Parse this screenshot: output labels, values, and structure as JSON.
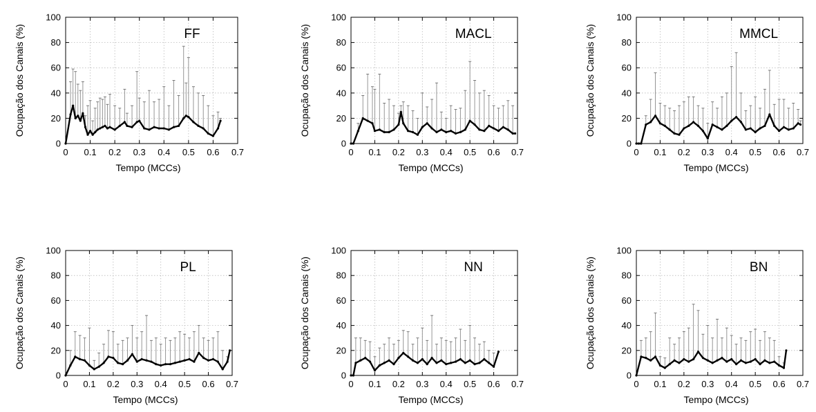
{
  "chart_data": [
    {
      "type": "line",
      "title": "FF",
      "xlabel": "Tempo (MCCs)",
      "ylabel": "Ocupação dos Canais (%)",
      "xlim": [
        0,
        0.7
      ],
      "ylim": [
        0,
        100
      ],
      "xticks": [
        "0",
        "0.1",
        "0.2",
        "0.3",
        "0.4",
        "0.5",
        "0.6",
        "0.7"
      ],
      "yticks": [
        "0",
        "20",
        "40",
        "60",
        "80",
        "100"
      ],
      "grid": true,
      "series": [
        {
          "x": [
            0.0,
            0.02,
            0.03,
            0.04,
            0.05,
            0.06,
            0.07,
            0.08,
            0.09,
            0.1,
            0.11,
            0.12,
            0.13,
            0.14,
            0.15,
            0.16,
            0.17,
            0.18,
            0.2,
            0.22,
            0.24,
            0.25,
            0.27,
            0.29,
            0.3,
            0.32,
            0.34,
            0.36,
            0.38,
            0.4,
            0.42,
            0.44,
            0.46,
            0.48,
            0.49,
            0.5,
            0.52,
            0.54,
            0.56,
            0.58,
            0.6,
            0.62,
            0.63
          ],
          "y": [
            0,
            23,
            30,
            20,
            22,
            18,
            24,
            13,
            7,
            10,
            7,
            9,
            11,
            12,
            13,
            14,
            12,
            13,
            11,
            14,
            17,
            14,
            13,
            17,
            18,
            12,
            11,
            13,
            12,
            12,
            11,
            13,
            14,
            20,
            22,
            21,
            17,
            14,
            12,
            8,
            6,
            12,
            18
          ],
          "yerr_upper": [
            0,
            49,
            59,
            57,
            47,
            42,
            49,
            22,
            30,
            34,
            18,
            28,
            33,
            36,
            35,
            37,
            31,
            39,
            30,
            28,
            43,
            24,
            30,
            57,
            36,
            33,
            42,
            33,
            35,
            45,
            30,
            50,
            38,
            77,
            48,
            68,
            45,
            40,
            38,
            30,
            22,
            25,
            20
          ]
        }
      ]
    },
    {
      "type": "line",
      "title": "MACL",
      "xlabel": "Tempo (MCCs)",
      "ylabel": "Ocupação dos Canais (%)",
      "xlim": [
        0,
        0.7
      ],
      "ylim": [
        0,
        100
      ],
      "xticks": [
        "0",
        "0.1",
        "0.2",
        "0.3",
        "0.4",
        "0.5",
        "0.6",
        "0.7"
      ],
      "yticks": [
        "0",
        "20",
        "40",
        "60",
        "80",
        "100"
      ],
      "grid": true,
      "series": [
        {
          "x": [
            0.0,
            0.01,
            0.03,
            0.05,
            0.07,
            0.09,
            0.1,
            0.12,
            0.14,
            0.16,
            0.18,
            0.2,
            0.21,
            0.22,
            0.24,
            0.26,
            0.28,
            0.3,
            0.32,
            0.34,
            0.36,
            0.38,
            0.4,
            0.42,
            0.44,
            0.46,
            0.48,
            0.5,
            0.52,
            0.54,
            0.56,
            0.58,
            0.6,
            0.62,
            0.64,
            0.66,
            0.68,
            0.69
          ],
          "y": [
            0,
            0,
            10,
            20,
            18,
            16,
            10,
            11,
            9,
            9,
            11,
            15,
            25,
            16,
            10,
            9,
            7,
            13,
            16,
            12,
            9,
            11,
            9,
            10,
            8,
            9,
            11,
            18,
            15,
            11,
            10,
            14,
            12,
            10,
            13,
            11,
            8,
            8
          ],
          "yerr_upper": [
            0,
            0,
            16,
            38,
            55,
            45,
            43,
            55,
            32,
            35,
            30,
            24,
            30,
            33,
            30,
            26,
            20,
            40,
            29,
            35,
            48,
            25,
            20,
            30,
            27,
            28,
            42,
            65,
            50,
            40,
            42,
            38,
            30,
            28,
            30,
            34,
            30,
            8
          ]
        }
      ]
    },
    {
      "type": "line",
      "title": "MMCL",
      "xlabel": "Tempo (MCCs)",
      "ylabel": "Ocupação dos Canais (%)",
      "xlim": [
        0,
        0.7
      ],
      "ylim": [
        0,
        100
      ],
      "xticks": [
        "0",
        "0.1",
        "0.2",
        "0.3",
        "0.4",
        "0.5",
        "0.6",
        "0.7"
      ],
      "yticks": [
        "0",
        "20",
        "40",
        "60",
        "80",
        "100"
      ],
      "grid": true,
      "series": [
        {
          "x": [
            0.0,
            0.01,
            0.02,
            0.04,
            0.06,
            0.08,
            0.1,
            0.12,
            0.14,
            0.16,
            0.18,
            0.2,
            0.22,
            0.24,
            0.26,
            0.28,
            0.3,
            0.32,
            0.34,
            0.36,
            0.38,
            0.4,
            0.42,
            0.44,
            0.46,
            0.48,
            0.5,
            0.52,
            0.54,
            0.56,
            0.58,
            0.6,
            0.62,
            0.64,
            0.66,
            0.68,
            0.69
          ],
          "y": [
            0,
            0,
            0,
            15,
            17,
            22,
            16,
            14,
            11,
            8,
            7,
            12,
            14,
            17,
            14,
            10,
            4,
            15,
            13,
            11,
            14,
            18,
            21,
            17,
            11,
            12,
            9,
            12,
            14,
            23,
            14,
            10,
            13,
            11,
            12,
            16,
            15
          ],
          "yerr_upper": [
            0,
            0,
            0,
            22,
            35,
            56,
            32,
            30,
            28,
            26,
            30,
            33,
            37,
            37,
            30,
            28,
            16,
            33,
            28,
            37,
            40,
            61,
            72,
            40,
            26,
            30,
            37,
            28,
            43,
            58,
            31,
            35,
            35,
            28,
            32,
            27,
            18
          ]
        }
      ]
    },
    {
      "type": "line",
      "title": "PL",
      "xlabel": "Tempo (MCCs)",
      "ylabel": "Ocupação dos Canais (%)",
      "xlim": [
        0,
        0.7
      ],
      "ylim": [
        0,
        100
      ],
      "xticks": [
        "0",
        "0.1",
        "0.2",
        "0.3",
        "0.4",
        "0.5",
        "0.6",
        "0.7"
      ],
      "yticks": [
        "0",
        "20",
        "40",
        "60",
        "80",
        "100"
      ],
      "grid": true,
      "series": [
        {
          "x": [
            0.0,
            0.02,
            0.04,
            0.06,
            0.08,
            0.1,
            0.12,
            0.14,
            0.16,
            0.18,
            0.2,
            0.22,
            0.24,
            0.26,
            0.28,
            0.3,
            0.32,
            0.34,
            0.36,
            0.38,
            0.4,
            0.42,
            0.44,
            0.46,
            0.48,
            0.5,
            0.52,
            0.54,
            0.56,
            0.58,
            0.6,
            0.62,
            0.64,
            0.66,
            0.68,
            0.69
          ],
          "y": [
            0,
            8,
            15,
            13,
            12,
            8,
            5,
            7,
            10,
            15,
            14,
            10,
            9,
            12,
            17,
            11,
            13,
            12,
            11,
            9,
            8,
            9,
            9,
            10,
            11,
            12,
            13,
            11,
            18,
            14,
            12,
            13,
            11,
            5,
            11,
            20
          ],
          "yerr_upper": [
            0,
            20,
            35,
            32,
            30,
            38,
            12,
            18,
            25,
            36,
            35,
            25,
            28,
            30,
            40,
            30,
            35,
            48,
            28,
            30,
            25,
            30,
            28,
            30,
            35,
            33,
            30,
            35,
            40,
            30,
            28,
            30,
            35,
            20,
            15,
            20
          ]
        }
      ]
    },
    {
      "type": "line",
      "title": "NN",
      "xlabel": "Tempo (MCCs)",
      "ylabel": "Ocupação dos Canais (%)",
      "xlim": [
        0,
        0.7
      ],
      "ylim": [
        0,
        100
      ],
      "xticks": [
        "0",
        "0.1",
        "0.2",
        "0.3",
        "0.4",
        "0.5",
        "0.6",
        "0.7"
      ],
      "yticks": [
        "0",
        "20",
        "40",
        "60",
        "80",
        "100"
      ],
      "grid": true,
      "series": [
        {
          "x": [
            0.0,
            0.01,
            0.02,
            0.04,
            0.06,
            0.08,
            0.1,
            0.12,
            0.14,
            0.16,
            0.18,
            0.2,
            0.22,
            0.24,
            0.26,
            0.28,
            0.3,
            0.32,
            0.34,
            0.36,
            0.38,
            0.4,
            0.42,
            0.44,
            0.46,
            0.48,
            0.5,
            0.52,
            0.54,
            0.56,
            0.58,
            0.6,
            0.62
          ],
          "y": [
            0,
            0,
            10,
            12,
            14,
            11,
            4,
            8,
            10,
            12,
            9,
            14,
            18,
            15,
            12,
            10,
            13,
            9,
            14,
            10,
            12,
            9,
            10,
            11,
            13,
            10,
            12,
            9,
            10,
            13,
            10,
            7,
            19
          ],
          "yerr_upper": [
            0,
            0,
            30,
            30,
            28,
            27,
            15,
            22,
            25,
            30,
            25,
            28,
            36,
            35,
            25,
            30,
            38,
            28,
            48,
            25,
            30,
            28,
            27,
            30,
            37,
            28,
            40,
            30,
            25,
            27,
            20,
            18,
            19
          ]
        }
      ]
    },
    {
      "type": "line",
      "title": "BN",
      "xlabel": "Tempo (MCCs)",
      "ylabel": "Ocupação dos Canais (%)",
      "xlim": [
        0,
        0.7
      ],
      "ylim": [
        0,
        100
      ],
      "xticks": [
        "0",
        "0.1",
        "0.2",
        "0.3",
        "0.4",
        "0.5",
        "0.6",
        "0.7"
      ],
      "yticks": [
        "0",
        "20",
        "40",
        "60",
        "80",
        "100"
      ],
      "grid": true,
      "series": [
        {
          "x": [
            0.0,
            0.02,
            0.04,
            0.06,
            0.08,
            0.1,
            0.12,
            0.14,
            0.16,
            0.18,
            0.2,
            0.22,
            0.24,
            0.26,
            0.28,
            0.3,
            0.32,
            0.34,
            0.36,
            0.38,
            0.4,
            0.42,
            0.44,
            0.46,
            0.48,
            0.5,
            0.52,
            0.54,
            0.56,
            0.58,
            0.6,
            0.62,
            0.63
          ],
          "y": [
            0,
            15,
            14,
            12,
            15,
            8,
            6,
            9,
            12,
            10,
            13,
            11,
            13,
            19,
            14,
            12,
            10,
            12,
            14,
            11,
            13,
            9,
            12,
            10,
            11,
            13,
            9,
            12,
            10,
            11,
            8,
            6,
            20
          ],
          "yerr_upper": [
            0,
            28,
            30,
            35,
            50,
            15,
            14,
            30,
            25,
            30,
            35,
            38,
            57,
            52,
            33,
            40,
            30,
            45,
            30,
            38,
            32,
            25,
            30,
            28,
            35,
            37,
            28,
            35,
            30,
            28,
            15,
            10,
            20
          ]
        }
      ]
    }
  ]
}
